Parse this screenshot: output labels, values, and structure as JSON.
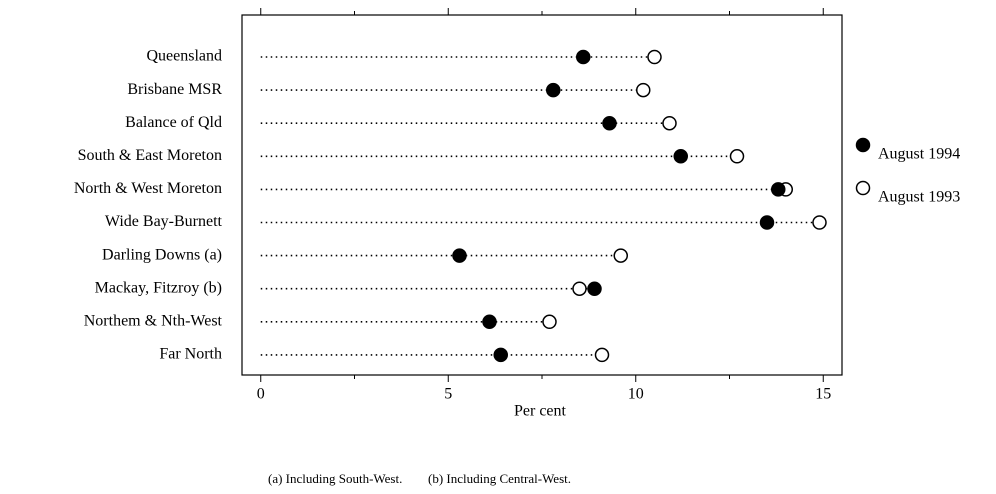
{
  "chart_data": {
    "type": "dot",
    "categories": [
      "Queensland",
      "Brisbane MSR",
      "Balance of Qld",
      "South & East Moreton",
      "North & West Moreton",
      "Wide Bay-Burnett",
      "Darling Downs (a)",
      "Mackay, Fitzroy (b)",
      "Northem & Nth-West",
      "Far North"
    ],
    "series": [
      {
        "name": "August 1994",
        "color": "#000000",
        "marker_fill": "#000000",
        "values": [
          8.6,
          7.8,
          9.3,
          11.2,
          13.8,
          13.5,
          5.3,
          8.9,
          6.1,
          6.4
        ]
      },
      {
        "name": "August 1993",
        "color": "#000000",
        "marker_fill": "#ffffff",
        "values": [
          10.5,
          10.2,
          10.9,
          12.7,
          14.0,
          14.9,
          9.6,
          8.5,
          7.7,
          9.1
        ]
      }
    ],
    "xlim": [
      -0.5,
      15.5
    ],
    "xticks": [
      0,
      5,
      10,
      15
    ],
    "minor_xticks": [
      2.5,
      7.5,
      12.5
    ],
    "xlabel": "Per cent",
    "legend": "right",
    "footnotes": [
      "(a) Including South-West.",
      "(b) Including Central-West."
    ]
  }
}
